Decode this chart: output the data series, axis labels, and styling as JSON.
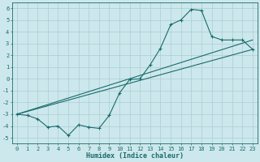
{
  "xlabel": "Humidex (Indice chaleur)",
  "bg_color": "#cce8ec",
  "grid_color": "#aacdd4",
  "line_color": "#1a6b6b",
  "xlim": [
    -0.5,
    23.5
  ],
  "ylim": [
    -5.5,
    6.5
  ],
  "xticks": [
    0,
    1,
    2,
    3,
    4,
    5,
    6,
    7,
    8,
    9,
    10,
    11,
    12,
    13,
    14,
    15,
    16,
    17,
    18,
    19,
    20,
    21,
    22,
    23
  ],
  "yticks": [
    -5,
    -4,
    -3,
    -2,
    -1,
    0,
    1,
    2,
    3,
    4,
    5,
    6
  ],
  "series1_x": [
    0,
    1,
    2,
    3,
    4,
    5,
    6,
    7,
    8,
    9,
    10,
    11,
    12,
    13,
    14,
    15,
    16,
    17,
    18,
    19,
    20,
    21,
    22,
    23
  ],
  "series1_y": [
    -3.0,
    -3.1,
    -3.4,
    -4.1,
    -4.0,
    -4.8,
    -3.9,
    -4.1,
    -4.2,
    -3.1,
    -1.2,
    -0.05,
    0.0,
    1.2,
    2.6,
    4.6,
    5.0,
    5.9,
    5.8,
    3.6,
    3.3,
    3.3,
    3.3,
    2.5
  ],
  "series2_x": [
    0,
    23
  ],
  "series2_y": [
    -3.0,
    2.5
  ],
  "series3_x": [
    0,
    23
  ],
  "series3_y": [
    -3.0,
    3.3
  ],
  "marker": "+",
  "marker_size": 3,
  "linewidth": 0.8,
  "font_size_ticks": 5,
  "font_size_xlabel": 6
}
